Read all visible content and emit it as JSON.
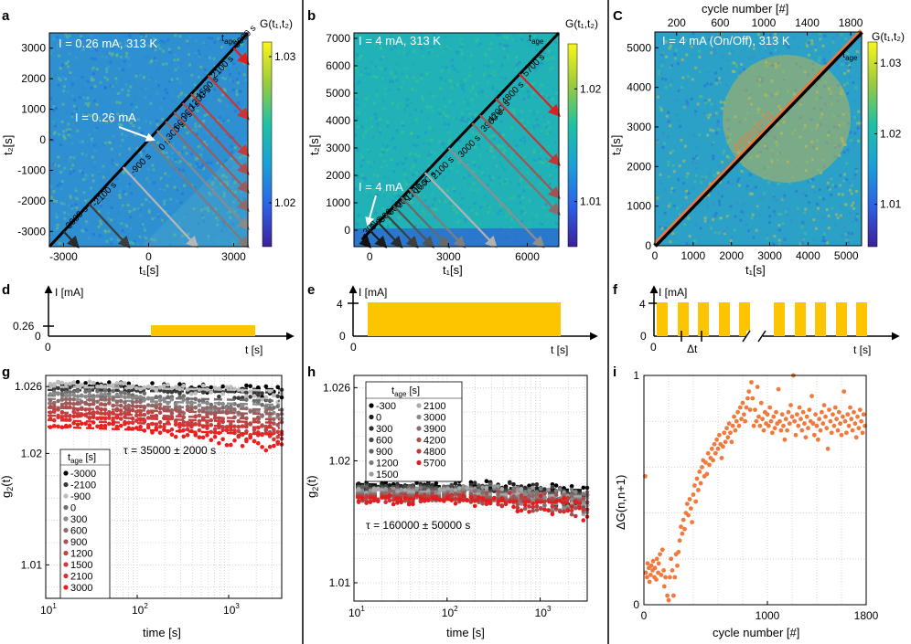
{
  "panels": {
    "a": "a",
    "b": "b",
    "c": "C",
    "d": "d",
    "e": "e",
    "f": "f",
    "g": "g",
    "h": "h",
    "i": "i"
  },
  "heatmaps": {
    "a": {
      "title": "I = 0.26 mA, 313 K",
      "xlabel": "t₁[s]",
      "ylabel": "t₂[s]",
      "xlim": [
        -3500,
        3500
      ],
      "ylim": [
        -3500,
        3500
      ],
      "xticks": [
        -3000,
        0,
        3000
      ],
      "yticks": [
        -3000,
        -2000,
        -1000,
        0,
        1000,
        2000,
        3000
      ],
      "cbar": {
        "label": "G(t₁,t₂)",
        "min": 1.017,
        "max": 1.031,
        "ticks": [
          1.02,
          1.03
        ],
        "ticklabels": [
          "1.02",
          "1.03"
        ]
      },
      "tage_label": "t_age",
      "current_label": "I = 0.26 mA",
      "tages": [
        -3000,
        -2100,
        -900,
        0,
        300,
        600,
        900,
        1200,
        1500,
        2100,
        3000
      ],
      "tage_labels": [
        "-3000 s",
        "-2100 s",
        "-900 s",
        "0 s",
        "300 s",
        "600 s",
        "900 s",
        "1200 s",
        "1500 s",
        "2100 s",
        "3000 s"
      ]
    },
    "b": {
      "title": "I = 4 mA, 313 K",
      "xlabel": "t₁[s]",
      "ylabel": "t₂[s]",
      "xlim": [
        -600,
        7200
      ],
      "ylim": [
        -600,
        7200
      ],
      "xticks": [
        0,
        3000,
        6000
      ],
      "yticks": [
        0,
        1000,
        2000,
        3000,
        4000,
        5000,
        6000,
        7000
      ],
      "cbar": {
        "label": "G(t₁,t₂)",
        "min": 1.006,
        "max": 1.024,
        "ticks": [
          1.01,
          1.02
        ],
        "ticklabels": [
          "1.01",
          "1.02"
        ]
      },
      "tage_label": "t_age",
      "current_label": "I = 4 mA",
      "tages": [
        -300,
        0,
        300,
        600,
        900,
        1200,
        1500,
        2100,
        3000,
        3900,
        4200,
        4800,
        5700
      ],
      "tage_labels": [
        "-300 s",
        "0 s",
        "300 s",
        "600 s",
        "900 s",
        "1200 s",
        "1500 s",
        "2100 s",
        "3000 s",
        "3900 s",
        "4200 s",
        "4800 s",
        "5700 s"
      ]
    },
    "c": {
      "title": "I = 4 mA (On/Off), 313 K",
      "xlabel": "t₁[s]",
      "ylabel": "t₂[s]",
      "xlim": [
        0,
        5400
      ],
      "ylim": [
        0,
        5400
      ],
      "xticks": [
        0,
        1000,
        2000,
        3000,
        4000,
        5000
      ],
      "yticks": [
        0,
        1000,
        2000,
        3000,
        4000,
        5000
      ],
      "top_axis": {
        "label": "cycle number [#]",
        "ticks": [
          200,
          600,
          1000,
          1400,
          1800
        ]
      },
      "cbar": {
        "label": "G(t₁,t₂)",
        "min": 1.004,
        "max": 1.033,
        "ticks": [
          1.01,
          1.02,
          1.03
        ],
        "ticklabels": [
          "1.01",
          "1.02",
          "1.03"
        ]
      },
      "tage_label": "t_age",
      "diag_label": "ΔG(n,n+1)"
    }
  },
  "protocols": {
    "d": {
      "ylabel": "I [mA]",
      "xlabel": "t [s]",
      "y_ticks": [
        "0.26",
        "0"
      ],
      "x_ticks": [
        "0"
      ],
      "level": 0.26
    },
    "e": {
      "ylabel": "I [mA]",
      "xlabel": "t [s]",
      "y_ticks": [
        "4",
        "0"
      ],
      "x_ticks": [
        "0"
      ],
      "level": 4
    },
    "f": {
      "ylabel": "I [mA]",
      "xlabel": "t [s]",
      "y_ticks": [
        "4",
        "0"
      ],
      "x_ticks": [
        "0"
      ],
      "dt_label": "Δt",
      "level": 4
    }
  },
  "chart_data": [
    {
      "panel": "g",
      "type": "scatter",
      "xscale": "log",
      "xlim": [
        10,
        3800
      ],
      "ylim": [
        1.007,
        1.027
      ],
      "xlabel": "time [s]",
      "ylabel": "g₂(t)",
      "xticks": [
        10,
        100,
        1000
      ],
      "xticklabels": [
        "10",
        "10",
        "10"
      ],
      "xtickexp": [
        "1",
        "2",
        "3"
      ],
      "yticks": [
        1.01,
        1.02,
        1.026
      ],
      "yticklabels": [
        "1.01",
        "1.02",
        "1.026"
      ],
      "annotation": "τ = 35000 ± 2000 s",
      "legend": {
        "title": "t_age [s]",
        "placement": "lower-left"
      },
      "series": [
        {
          "name": "-3000",
          "color": "#000000",
          "plateau": 1.0262,
          "decay": 0.0004
        },
        {
          "name": "-2100",
          "color": "#3a3a3a",
          "plateau": 1.0259,
          "decay": 0.0004
        },
        {
          "name": "-900",
          "color": "#bdbdbd",
          "plateau": 1.0262,
          "decay": 0.0006
        },
        {
          "name": "0",
          "color": "#6e6e6e",
          "plateau": 1.0254,
          "decay": 0.0008
        },
        {
          "name": "300",
          "color": "#8a8a8a",
          "plateau": 1.0251,
          "decay": 0.0009
        },
        {
          "name": "600",
          "color": "#8f6a6a",
          "plateau": 1.0247,
          "decay": 0.001
        },
        {
          "name": "900",
          "color": "#a35656",
          "plateau": 1.0243,
          "decay": 0.001
        },
        {
          "name": "1200",
          "color": "#b84848",
          "plateau": 1.0239,
          "decay": 0.0011
        },
        {
          "name": "1500",
          "color": "#c83c3c",
          "plateau": 1.0236,
          "decay": 0.0011
        },
        {
          "name": "2100",
          "color": "#d93030",
          "plateau": 1.0232,
          "decay": 0.0012
        },
        {
          "name": "3000",
          "color": "#ee1c1c",
          "plateau": 1.0226,
          "decay": 0.0012
        }
      ]
    },
    {
      "panel": "h",
      "type": "scatter",
      "xscale": "log",
      "xlim": [
        10,
        3200
      ],
      "ylim": [
        1.0085,
        1.027
      ],
      "xlabel": "time [s]",
      "ylabel": "g₂(t)",
      "xticks": [
        10,
        100,
        1000
      ],
      "xticklabels": [
        "10",
        "10",
        "10"
      ],
      "xtickexp": [
        "1",
        "2",
        "3"
      ],
      "yticks": [
        1.01,
        1.02,
        1.026
      ],
      "yticklabels": [
        "1.01",
        "1.02",
        "1.026"
      ],
      "annotation": "τ = 160000 ± 50000 s",
      "legend": {
        "title": "t_age [s]",
        "placement": "upper-left"
      },
      "series": [
        {
          "name": "-300",
          "color": "#000000",
          "plateau": 1.0179
        },
        {
          "name": "0",
          "color": "#1c1c1c",
          "plateau": 1.0178
        },
        {
          "name": "300",
          "color": "#2e2e2e",
          "plateau": 1.0177
        },
        {
          "name": "600",
          "color": "#474747",
          "plateau": 1.0176
        },
        {
          "name": "900",
          "color": "#606060",
          "plateau": 1.0175
        },
        {
          "name": "1200",
          "color": "#7c7c7c",
          "plateau": 1.0174
        },
        {
          "name": "1500",
          "color": "#999999",
          "plateau": 1.0174
        },
        {
          "name": "2100",
          "color": "#aaaaaa",
          "plateau": 1.0173
        },
        {
          "name": "3000",
          "color": "#8a8a8a",
          "plateau": 1.0172
        },
        {
          "name": "3900",
          "color": "#8d6b6b",
          "plateau": 1.0171
        },
        {
          "name": "4200",
          "color": "#a35252",
          "plateau": 1.017
        },
        {
          "name": "4800",
          "color": "#c03838",
          "plateau": 1.0169
        },
        {
          "name": "5700",
          "color": "#e41c1c",
          "plateau": 1.0168
        }
      ]
    },
    {
      "panel": "i",
      "type": "scatter",
      "xlim": [
        0,
        1800
      ],
      "ylim": [
        0,
        1
      ],
      "xlabel": "cycle number [#]",
      "ylabel": "ΔG(n,n+1)",
      "xticks": [
        0,
        1000,
        1800
      ],
      "yticks": [
        0,
        1
      ],
      "color": "#f07a3c",
      "points": [
        [
          10,
          0.56
        ],
        [
          15,
          0.14
        ],
        [
          25,
          0.12
        ],
        [
          30,
          0.18
        ],
        [
          40,
          0.16
        ],
        [
          45,
          0.1
        ],
        [
          55,
          0.13
        ],
        [
          60,
          0.17
        ],
        [
          70,
          0.15
        ],
        [
          75,
          0.19
        ],
        [
          85,
          0.12
        ],
        [
          90,
          0.16
        ],
        [
          100,
          0.11
        ],
        [
          105,
          0.2
        ],
        [
          115,
          0.14
        ],
        [
          120,
          0.18
        ],
        [
          130,
          0.22
        ],
        [
          140,
          0.13
        ],
        [
          150,
          0.24
        ],
        [
          160,
          0.15
        ],
        [
          165,
          0.08
        ],
        [
          175,
          0.12
        ],
        [
          190,
          0.04
        ],
        [
          200,
          0.02
        ],
        [
          210,
          0.12
        ],
        [
          220,
          0.2
        ],
        [
          230,
          0.15
        ],
        [
          240,
          0.04
        ],
        [
          250,
          0.12
        ],
        [
          260,
          0.22
        ],
        [
          270,
          0.17
        ],
        [
          280,
          0.23
        ],
        [
          290,
          0.28
        ],
        [
          300,
          0.34
        ],
        [
          310,
          0.31
        ],
        [
          320,
          0.37
        ],
        [
          330,
          0.33
        ],
        [
          340,
          0.4
        ],
        [
          350,
          0.44
        ],
        [
          360,
          0.39
        ],
        [
          370,
          0.46
        ],
        [
          380,
          0.42
        ],
        [
          390,
          0.36
        ],
        [
          400,
          0.48
        ],
        [
          410,
          0.52
        ],
        [
          420,
          0.45
        ],
        [
          430,
          0.55
        ],
        [
          440,
          0.5
        ],
        [
          450,
          0.58
        ],
        [
          460,
          0.53
        ],
        [
          470,
          0.6
        ],
        [
          480,
          0.63
        ],
        [
          490,
          0.56
        ],
        [
          500,
          0.62
        ],
        [
          510,
          0.57
        ],
        [
          520,
          0.66
        ],
        [
          530,
          0.61
        ],
        [
          540,
          0.64
        ],
        [
          550,
          0.68
        ],
        [
          560,
          0.63
        ],
        [
          570,
          0.7
        ],
        [
          580,
          0.66
        ],
        [
          590,
          0.72
        ],
        [
          600,
          0.68
        ],
        [
          610,
          0.74
        ],
        [
          620,
          0.7
        ],
        [
          630,
          0.64
        ],
        [
          640,
          0.69
        ],
        [
          650,
          0.75
        ],
        [
          660,
          0.71
        ],
        [
          670,
          0.77
        ],
        [
          680,
          0.73
        ],
        [
          690,
          0.79
        ],
        [
          700,
          0.75
        ],
        [
          710,
          0.71
        ],
        [
          720,
          0.78
        ],
        [
          730,
          0.82
        ],
        [
          740,
          0.76
        ],
        [
          750,
          0.8
        ],
        [
          760,
          0.84
        ],
        [
          770,
          0.78
        ],
        [
          780,
          0.86
        ],
        [
          790,
          0.81
        ],
        [
          800,
          0.88
        ],
        [
          810,
          0.83
        ],
        [
          820,
          0.8
        ],
        [
          830,
          0.86
        ],
        [
          840,
          0.9
        ],
        [
          850,
          0.93
        ],
        [
          860,
          0.85
        ],
        [
          870,
          0.97
        ],
        [
          880,
          0.9
        ],
        [
          890,
          0.78
        ],
        [
          900,
          0.85
        ],
        [
          910,
          0.8
        ],
        [
          920,
          0.95
        ],
        [
          930,
          0.82
        ],
        [
          940,
          0.78
        ],
        [
          950,
          0.88
        ],
        [
          960,
          0.81
        ],
        [
          970,
          0.76
        ],
        [
          980,
          0.84
        ],
        [
          990,
          0.79
        ],
        [
          1000,
          0.83
        ],
        [
          1010,
          0.78
        ],
        [
          1020,
          0.86
        ],
        [
          1030,
          0.8
        ],
        [
          1040,
          0.75
        ],
        [
          1050,
          0.82
        ],
        [
          1060,
          0.77
        ],
        [
          1070,
          0.84
        ],
        [
          1080,
          0.79
        ],
        [
          1090,
          0.94
        ],
        [
          1100,
          0.8
        ],
        [
          1110,
          0.76
        ],
        [
          1120,
          0.83
        ],
        [
          1130,
          0.78
        ],
        [
          1140,
          0.72
        ],
        [
          1150,
          0.81
        ],
        [
          1160,
          0.76
        ],
        [
          1170,
          0.84
        ],
        [
          1180,
          0.79
        ],
        [
          1190,
          0.87
        ],
        [
          1200,
          0.82
        ],
        [
          1210,
          1.0
        ],
        [
          1220,
          0.8
        ],
        [
          1230,
          0.74
        ],
        [
          1240,
          0.83
        ],
        [
          1250,
          0.78
        ],
        [
          1260,
          0.86
        ],
        [
          1270,
          0.81
        ],
        [
          1280,
          0.76
        ],
        [
          1290,
          0.84
        ],
        [
          1300,
          0.79
        ],
        [
          1310,
          0.73
        ],
        [
          1320,
          0.82
        ],
        [
          1330,
          0.77
        ],
        [
          1340,
          0.85
        ],
        [
          1350,
          0.8
        ],
        [
          1360,
          0.91
        ],
        [
          1370,
          0.79
        ],
        [
          1380,
          0.74
        ],
        [
          1390,
          0.83
        ],
        [
          1400,
          0.78
        ],
        [
          1410,
          0.72
        ],
        [
          1420,
          0.81
        ],
        [
          1430,
          0.76
        ],
        [
          1440,
          0.84
        ],
        [
          1450,
          0.79
        ],
        [
          1460,
          0.87
        ],
        [
          1470,
          0.82
        ],
        [
          1480,
          0.77
        ],
        [
          1490,
          0.68
        ],
        [
          1500,
          0.85
        ],
        [
          1510,
          0.8
        ],
        [
          1520,
          0.75
        ],
        [
          1530,
          0.83
        ],
        [
          1540,
          0.78
        ],
        [
          1550,
          0.86
        ],
        [
          1560,
          0.81
        ],
        [
          1570,
          0.76
        ],
        [
          1580,
          0.84
        ],
        [
          1590,
          0.79
        ],
        [
          1600,
          0.74
        ],
        [
          1610,
          0.82
        ],
        [
          1620,
          0.93
        ],
        [
          1630,
          0.8
        ],
        [
          1640,
          0.75
        ],
        [
          1650,
          0.83
        ],
        [
          1660,
          0.78
        ],
        [
          1670,
          0.86
        ],
        [
          1680,
          0.81
        ],
        [
          1690,
          0.76
        ],
        [
          1700,
          0.84
        ],
        [
          1710,
          0.79
        ],
        [
          1720,
          0.73
        ],
        [
          1730,
          0.82
        ],
        [
          1740,
          0.77
        ],
        [
          1750,
          0.85
        ],
        [
          1760,
          0.8
        ],
        [
          1770,
          0.75
        ],
        [
          1780,
          0.83
        ],
        [
          1790,
          0.78
        ]
      ]
    }
  ]
}
